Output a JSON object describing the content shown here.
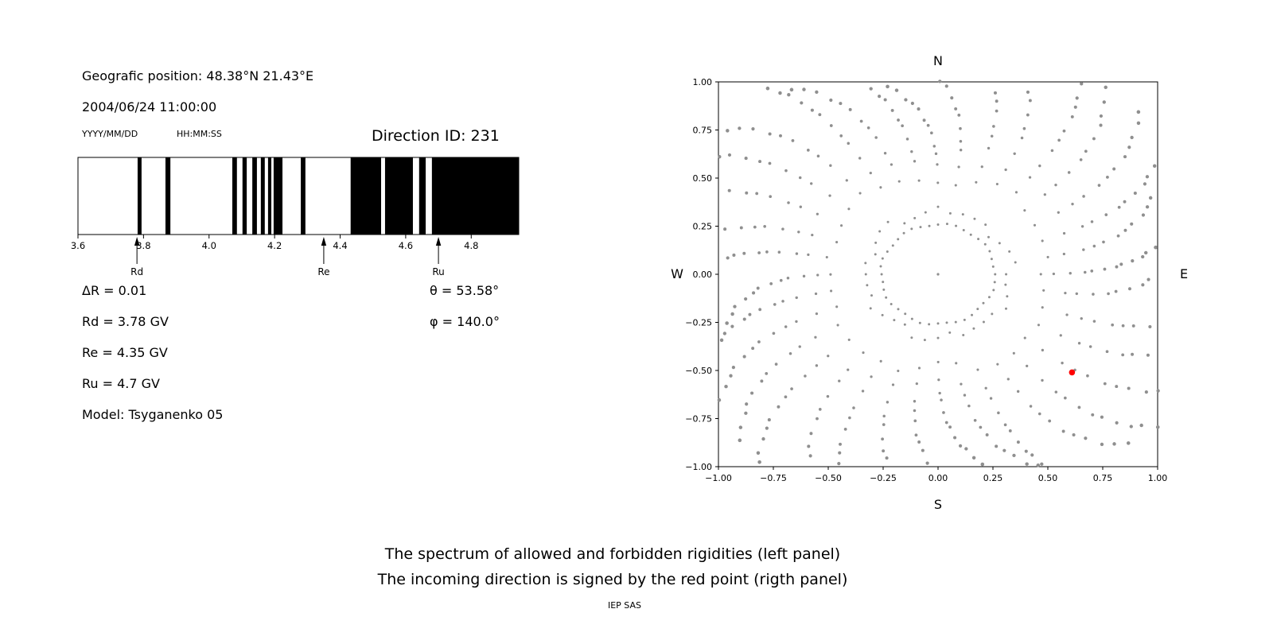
{
  "header": {
    "position": "Geografic position: 48.38°N 21.43°E",
    "datetime": "2004/06/24 11:00:00",
    "date_format": "YYYY/MM/DD",
    "time_format": "HH:MM:SS",
    "direction_id": "Direction ID: 231"
  },
  "info": {
    "delta_r": "ΔR = 0.01",
    "rd": "Rd = 3.78 GV",
    "re": "Re = 4.35 GV",
    "ru": "Ru = 4.7 GV",
    "model": "Model: Tsyganenko 05",
    "theta": "θ = 53.58°",
    "phi": "φ = 140.0°"
  },
  "caption": {
    "line1": "The spectrum of allowed and forbidden rigidities (left panel)",
    "line2": "The incoming direction is signed by the red point (rigth panel)",
    "credit": "IEP SAS"
  },
  "chart_data": [
    {
      "type": "bar",
      "subtype": "rigidity-barcode",
      "panel": "left",
      "xlim": [
        3.6,
        4.945
      ],
      "xticks": [
        3.6,
        3.8,
        4.0,
        4.2,
        4.4,
        4.6,
        4.8
      ],
      "xtick_labels": [
        "3.6",
        "3.8",
        "4.0",
        "4.2",
        "4.4",
        "4.6",
        "4.8"
      ],
      "black_color": "#000000",
      "white_color": "#ffffff",
      "black_intervals": [
        [
          3.782,
          3.794
        ],
        [
          3.867,
          3.882
        ],
        [
          4.071,
          4.085
        ],
        [
          4.102,
          4.115
        ],
        [
          4.132,
          4.146
        ],
        [
          4.158,
          4.17
        ],
        [
          4.18,
          4.19
        ],
        [
          4.197,
          4.224
        ],
        [
          4.28,
          4.294
        ],
        [
          4.432,
          4.525
        ],
        [
          4.537,
          4.622
        ],
        [
          4.641,
          4.661
        ],
        [
          4.68,
          4.945
        ]
      ],
      "markers": [
        {
          "label": "Rd",
          "value": 3.78
        },
        {
          "label": "Re",
          "value": 4.35
        },
        {
          "label": "Ru",
          "value": 4.7
        }
      ]
    },
    {
      "type": "scatter",
      "subtype": "incoming-direction-map",
      "panel": "right",
      "xlim": [
        -1,
        1
      ],
      "ylim": [
        -1,
        1
      ],
      "xticks": [
        -1.0,
        -0.75,
        -0.5,
        -0.25,
        0.0,
        0.25,
        0.5,
        0.75,
        1.0
      ],
      "yticks": [
        1.0,
        0.75,
        0.5,
        0.25,
        0.0,
        -0.25,
        -0.5,
        -0.75,
        -1.0
      ],
      "xtick_labels": [
        "−1.00",
        "−0.75",
        "−0.50",
        "−0.25",
        "0.00",
        "0.25",
        "0.50",
        "0.75",
        "1.00"
      ],
      "ytick_labels": [
        "1.00",
        "0.75",
        "0.50",
        "0.25",
        "0.00",
        "−0.25",
        "−0.50",
        "−0.75",
        "−1.00"
      ],
      "compass": {
        "north": "N",
        "south": "S",
        "east": "E",
        "west": "W"
      },
      "dot_color": "#8f8f8f",
      "red_color": "#ff0000",
      "red_point": {
        "x": 0.61,
        "y": -0.51
      },
      "generator": {
        "spoke_count": 36,
        "inner_radius": 0.31,
        "outer_radius": 1.0,
        "diagonal_extension": 0.28,
        "points_per_spoke": 13,
        "density_exponent": 0.62,
        "curvature_rad": 0.2,
        "ring_radius": 0.26,
        "ring_points": 40,
        "center_dot": true,
        "clip": 1.005
      }
    }
  ]
}
